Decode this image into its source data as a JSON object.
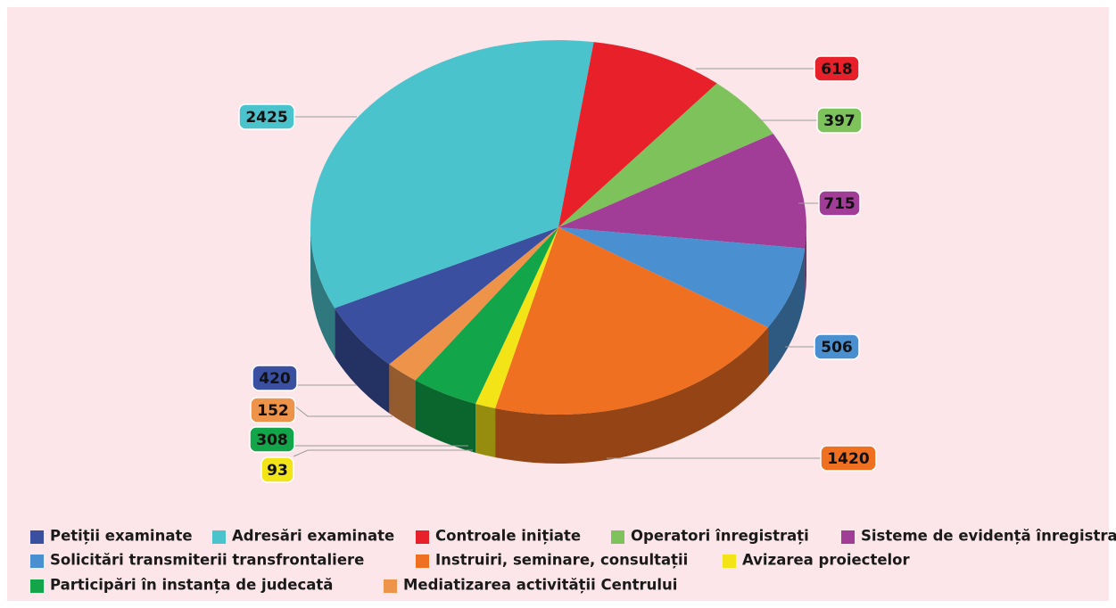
{
  "chart_data": {
    "type": "pie3d",
    "categories": [
      "Petiții examinate",
      "Adresări examinate",
      "Controale inițiate",
      "Operatori înregistrați",
      "Sisteme de evidență înregistrate",
      "Solicitări transmiterii transfrontaliere",
      "Instruiri, seminare, consultații",
      "Avizarea proiectelor",
      "Participări în instanța de judecată",
      "Mediatizarea activității Centrului"
    ],
    "values": [
      420,
      2425,
      618,
      397,
      715,
      506,
      1420,
      93,
      308,
      152
    ],
    "colors": [
      "#3a4fa0",
      "#4bc3cc",
      "#e8202a",
      "#7dc25a",
      "#a23d97",
      "#4a8fd0",
      "#f07022",
      "#f2e416",
      "#12a54a",
      "#ee934a"
    ],
    "legend": "bottom"
  }
}
